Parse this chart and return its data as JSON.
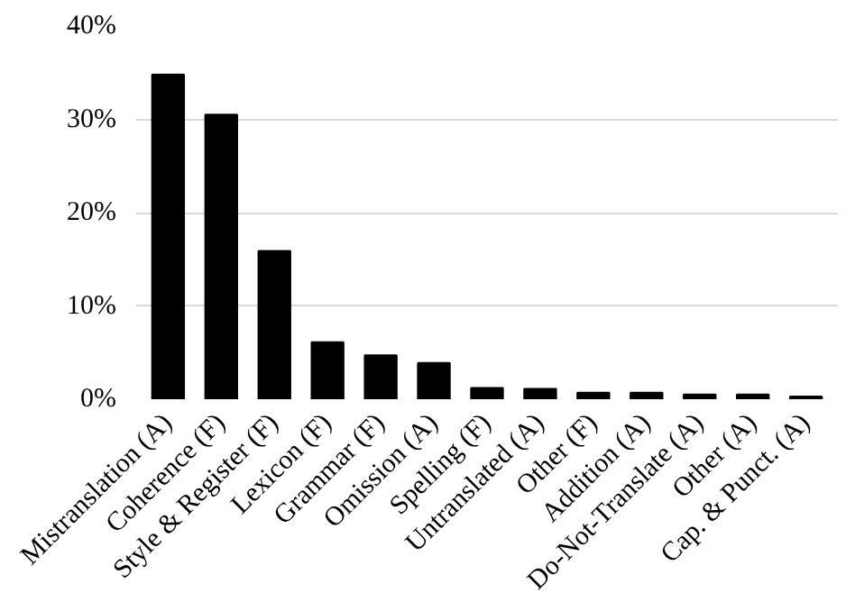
{
  "chart_data": {
    "type": "bar",
    "categories": [
      "Mistranslation (A)",
      "Coherence (F)",
      "Style & Register (F)",
      "Lexicon (F)",
      "Grammar (F)",
      "Omission (A)",
      "Spelling (F)",
      "Untranslated (A)",
      "Other (F)",
      "Addition (A)",
      "Do-Not-Translate (A)",
      "Other (A)",
      "Cap. & Punct. (A)"
    ],
    "values": [
      34.8,
      30.5,
      15.9,
      6.1,
      4.7,
      3.9,
      1.2,
      1.1,
      0.7,
      0.7,
      0.5,
      0.5,
      0.3
    ],
    "color": "#000000",
    "ylim": [
      0,
      40
    ],
    "yticks": [
      {
        "value": 0,
        "label": "0%"
      },
      {
        "value": 10,
        "label": "10%"
      },
      {
        "value": 20,
        "label": "20%"
      },
      {
        "value": 30,
        "label": "30%"
      },
      {
        "value": 40,
        "label": "40%"
      }
    ],
    "grid": "y"
  }
}
